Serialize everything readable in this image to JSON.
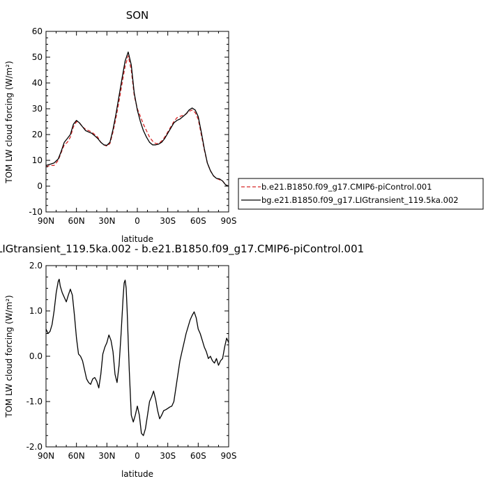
{
  "chart_data": [
    {
      "type": "line",
      "title": "SON",
      "xlabel": "latitude",
      "ylabel": "TOM LW cloud forcing (W/m²)",
      "xlim": [
        90,
        -90
      ],
      "ylim": [
        -10,
        60
      ],
      "xticks": [
        90,
        60,
        30,
        0,
        -30,
        -60,
        -90
      ],
      "xticklabels": [
        "90N",
        "60N",
        "30N",
        "0",
        "30S",
        "60S",
        "90S"
      ],
      "yticks": [
        -10,
        0,
        10,
        20,
        30,
        40,
        50,
        60
      ],
      "yticklabels": [
        "-10",
        "0",
        "10",
        "20",
        "30",
        "40",
        "50",
        "60"
      ],
      "legend_position": "right",
      "series": [
        {
          "name": "b.e21.B1850.f09_g17.CMIP6-piControl.001",
          "color": "#d62728",
          "dash": true,
          "x": [
            90,
            86,
            82,
            78,
            75,
            72,
            69,
            66,
            63,
            60,
            57,
            54,
            51,
            48,
            45,
            42,
            39,
            36,
            33,
            30,
            27,
            24,
            21,
            18,
            15,
            12,
            9,
            6,
            3,
            0,
            -3,
            -6,
            -9,
            -12,
            -15,
            -18,
            -21,
            -24,
            -27,
            -30,
            -33,
            -36,
            -39,
            -42,
            -45,
            -48,
            -51,
            -54,
            -57,
            -60,
            -63,
            -66,
            -69,
            -72,
            -75,
            -78,
            -81,
            -84,
            -87,
            -90
          ],
          "y": [
            7.5,
            8,
            8,
            10,
            13,
            16,
            17,
            19,
            23,
            25,
            24.5,
            23,
            22,
            21.5,
            21,
            20,
            19,
            17,
            16,
            15.5,
            16.5,
            21,
            26.5,
            33,
            40,
            46.5,
            50.5,
            45,
            35,
            30,
            27,
            24,
            21.5,
            19,
            17.5,
            16.5,
            16.5,
            17.5,
            19,
            21,
            23,
            25,
            26.5,
            27,
            27.5,
            28,
            29,
            29.5,
            28.5,
            26,
            20,
            14,
            9,
            6,
            4,
            3,
            2.5,
            2,
            0.5,
            0
          ]
        },
        {
          "name": "bg.e21.B1850.f09_g17.LIGtransient_119.5ka.002",
          "color": "#000000",
          "dash": false,
          "x": [
            90,
            86,
            82,
            78,
            75,
            72,
            69,
            66,
            63,
            60,
            57,
            54,
            51,
            48,
            45,
            42,
            39,
            36,
            33,
            30,
            27,
            24,
            21,
            18,
            15,
            12,
            9,
            6,
            3,
            0,
            -3,
            -6,
            -9,
            -12,
            -15,
            -18,
            -21,
            -24,
            -27,
            -30,
            -33,
            -36,
            -39,
            -42,
            -45,
            -48,
            -51,
            -54,
            -57,
            -60,
            -63,
            -66,
            -69,
            -72,
            -75,
            -78,
            -81,
            -84,
            -87,
            -90
          ],
          "y": [
            8,
            8.5,
            9,
            10.5,
            13.5,
            17,
            18.5,
            20,
            24,
            25.5,
            24.5,
            23,
            21.5,
            21,
            20.5,
            19.5,
            18.5,
            17,
            16,
            15.8,
            17,
            22,
            28,
            35,
            42,
            48.5,
            52,
            47,
            36,
            29.5,
            25,
            21.5,
            19,
            17,
            16,
            16,
            16.3,
            17,
            18.5,
            20.5,
            22.5,
            24.5,
            25.5,
            26,
            27,
            28,
            29.5,
            30.3,
            29.5,
            27,
            21,
            14.5,
            9,
            6,
            4,
            3,
            2.8,
            2,
            0.5,
            0
          ]
        }
      ]
    },
    {
      "type": "line",
      "title": "LIGtransient_119.5ka.002 - b.e21.B1850.f09_g17.CMIP6-piControl.001",
      "xlabel": "latitude",
      "ylabel": "TOM LW cloud forcing (W/m²)",
      "xlim": [
        90,
        -90
      ],
      "ylim": [
        -2,
        2
      ],
      "xticks": [
        90,
        60,
        30,
        0,
        -30,
        -60,
        -90
      ],
      "xticklabels": [
        "90N",
        "60N",
        "30N",
        "0",
        "30S",
        "60S",
        "90S"
      ],
      "yticks": [
        -2,
        -1,
        0,
        1,
        2
      ],
      "yticklabels": [
        "-2.0",
        "-1.0",
        "0.0",
        "1.0",
        "2.0"
      ],
      "series": [
        {
          "color": "#000000",
          "dash": false,
          "x": [
            90,
            88,
            86,
            84,
            82,
            80,
            78,
            77,
            76,
            74,
            72,
            70,
            68,
            66,
            64,
            62,
            60,
            58,
            56,
            54,
            52,
            50,
            48,
            46,
            44,
            42,
            40,
            38,
            36,
            34,
            32,
            30,
            28,
            26,
            24,
            22,
            20,
            18,
            16,
            14,
            13,
            12,
            11,
            10,
            8,
            6,
            4,
            2,
            0,
            -2,
            -4,
            -6,
            -8,
            -10,
            -12,
            -14,
            -16,
            -18,
            -20,
            -22,
            -24,
            -26,
            -28,
            -30,
            -32,
            -34,
            -36,
            -38,
            -40,
            -42,
            -44,
            -46,
            -48,
            -50,
            -52,
            -54,
            -56,
            -58,
            -60,
            -62,
            -64,
            -66,
            -68,
            -70,
            -72,
            -74,
            -76,
            -78,
            -80,
            -82,
            -84,
            -86,
            -88,
            -90
          ],
          "y": [
            0.6,
            0.5,
            0.55,
            0.7,
            1.0,
            1.4,
            1.65,
            1.7,
            1.55,
            1.4,
            1.3,
            1.2,
            1.35,
            1.48,
            1.35,
            0.9,
            0.4,
            0.05,
            0.0,
            -0.1,
            -0.3,
            -0.5,
            -0.58,
            -0.62,
            -0.5,
            -0.47,
            -0.55,
            -0.7,
            -0.4,
            0.05,
            0.2,
            0.3,
            0.47,
            0.35,
            0.1,
            -0.4,
            -0.58,
            -0.2,
            0.5,
            1.3,
            1.62,
            1.68,
            1.5,
            1.0,
            -0.3,
            -1.3,
            -1.45,
            -1.3,
            -1.1,
            -1.3,
            -1.7,
            -1.75,
            -1.6,
            -1.3,
            -1.0,
            -0.9,
            -0.77,
            -0.95,
            -1.2,
            -1.38,
            -1.3,
            -1.2,
            -1.18,
            -1.15,
            -1.12,
            -1.1,
            -1.0,
            -0.7,
            -0.4,
            -0.1,
            0.1,
            0.3,
            0.5,
            0.65,
            0.8,
            0.9,
            0.98,
            0.85,
            0.6,
            0.5,
            0.35,
            0.2,
            0.1,
            -0.05,
            0.0,
            -0.1,
            -0.15,
            -0.05,
            -0.2,
            -0.1,
            -0.05,
            0.2,
            0.4,
            0.3
          ]
        }
      ]
    }
  ]
}
